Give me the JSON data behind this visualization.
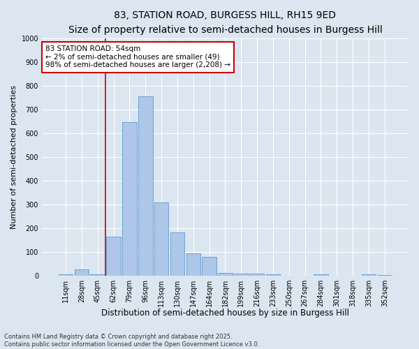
{
  "title": "83, STATION ROAD, BURGESS HILL, RH15 9ED",
  "subtitle": "Size of property relative to semi-detached houses in Burgess Hill",
  "xlabel": "Distribution of semi-detached houses by size in Burgess Hill",
  "ylabel": "Number of semi-detached properties",
  "categories": [
    "11sqm",
    "28sqm",
    "45sqm",
    "62sqm",
    "79sqm",
    "96sqm",
    "113sqm",
    "130sqm",
    "147sqm",
    "164sqm",
    "182sqm",
    "199sqm",
    "216sqm",
    "233sqm",
    "250sqm",
    "267sqm",
    "284sqm",
    "301sqm",
    "318sqm",
    "335sqm",
    "352sqm"
  ],
  "values": [
    5,
    25,
    5,
    165,
    648,
    755,
    308,
    183,
    93,
    80,
    12,
    10,
    10,
    5,
    0,
    0,
    5,
    0,
    0,
    5,
    3
  ],
  "bar_color": "#aec6e8",
  "bar_edge_color": "#5b9bd5",
  "vline_color": "#cc0000",
  "vline_pos": 2.5,
  "ylim": [
    0,
    1000
  ],
  "yticks": [
    0,
    100,
    200,
    300,
    400,
    500,
    600,
    700,
    800,
    900,
    1000
  ],
  "annotation_text": "83 STATION ROAD: 54sqm\n← 2% of semi-detached houses are smaller (49)\n98% of semi-detached houses are larger (2,208) →",
  "annotation_box_color": "#ffffff",
  "annotation_box_edge": "#cc0000",
  "bg_color": "#dce6f0",
  "plot_bg_color": "#dce6f0",
  "grid_color": "#ffffff",
  "footer": "Contains HM Land Registry data © Crown copyright and database right 2025.\nContains public sector information licensed under the Open Government Licence v3.0.",
  "title_fontsize": 10,
  "subtitle_fontsize": 9,
  "tick_fontsize": 7,
  "ylabel_fontsize": 8,
  "xlabel_fontsize": 8.5,
  "footer_fontsize": 6,
  "annotation_fontsize": 7.5
}
